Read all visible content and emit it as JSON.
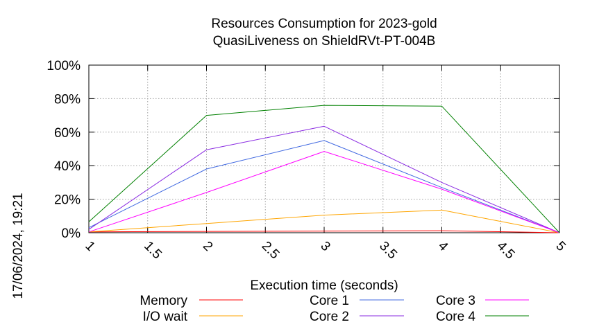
{
  "chart_data": {
    "type": "line",
    "title": [
      "Resources Consumption for 2023-gold",
      "QuasiLiveness on ShieldRVt-PT-004B"
    ],
    "xlabel": "Execution time (seconds)",
    "ylabel": "",
    "xlim": [
      1,
      5
    ],
    "ylim": [
      0,
      100
    ],
    "x_ticks": [
      "1",
      "1.5",
      "2",
      "2.5",
      "3",
      "3.5",
      "4",
      "4.5",
      "5"
    ],
    "y_ticks": [
      "0%",
      "20%",
      "40%",
      "60%",
      "80%",
      "100%"
    ],
    "grid": true,
    "legend": "bottom",
    "timestamp": "17/06/2024, 19:21",
    "x": [
      1,
      2,
      3,
      4,
      5
    ],
    "series": [
      {
        "name": "Memory",
        "color": "#ff0000",
        "values": [
          0.5,
          0.8,
          1.0,
          1.2,
          0
        ]
      },
      {
        "name": "I/O wait",
        "color": "#ffa500",
        "values": [
          0.5,
          5.5,
          10.5,
          13.5,
          0
        ]
      },
      {
        "name": "Core 1",
        "color": "#4169e1",
        "values": [
          3,
          38,
          55,
          27,
          0
        ]
      },
      {
        "name": "Core 2",
        "color": "#8a2be2",
        "values": [
          2,
          49.5,
          63.5,
          30,
          0
        ]
      },
      {
        "name": "Core 3",
        "color": "#ff00ff",
        "values": [
          0.5,
          24,
          48.5,
          26,
          0
        ]
      },
      {
        "name": "Core 4",
        "color": "#008000",
        "values": [
          6.5,
          70,
          76,
          75.5,
          0
        ]
      }
    ]
  }
}
